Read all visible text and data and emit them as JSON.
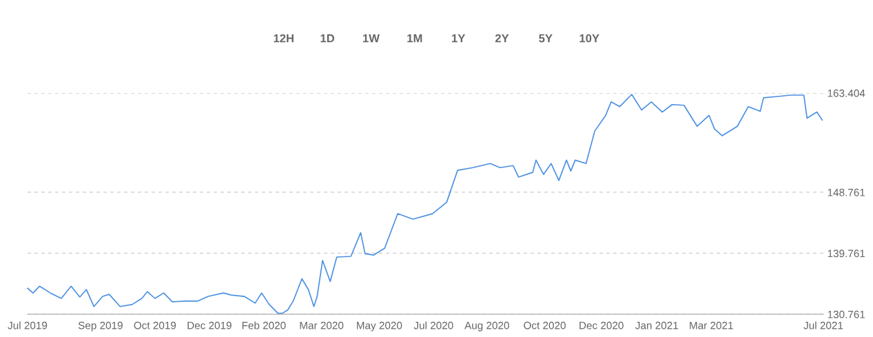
{
  "chart_data": {
    "type": "line",
    "annotations": [
      "12H",
      "1D",
      "1W",
      "1M",
      "1Y",
      "2Y",
      "5Y",
      "10Y"
    ],
    "x": [
      "2019-07-01",
      "2019-07-06",
      "2019-07-12",
      "2019-07-22",
      "2019-08-01",
      "2019-08-10",
      "2019-08-18",
      "2019-08-24",
      "2019-08-31",
      "2019-09-08",
      "2019-09-14",
      "2019-09-24",
      "2019-10-05",
      "2019-10-14",
      "2019-10-19",
      "2019-10-26",
      "2019-11-03",
      "2019-11-11",
      "2019-11-23",
      "2019-12-04",
      "2019-12-14",
      "2019-12-28",
      "2020-01-04",
      "2020-01-16",
      "2020-01-26",
      "2020-02-01",
      "2020-02-08",
      "2020-02-16",
      "2020-02-20",
      "2020-02-25",
      "2020-03-01",
      "2020-03-09",
      "2020-03-15",
      "2020-03-20",
      "2020-03-23",
      "2020-03-28",
      "2020-04-04",
      "2020-04-10",
      "2020-04-23",
      "2020-05-02",
      "2020-05-06",
      "2020-05-14",
      "2020-05-24",
      "2020-06-05",
      "2020-06-19",
      "2020-07-07",
      "2020-07-20",
      "2020-07-30",
      "2020-08-13",
      "2020-08-29",
      "2020-09-07",
      "2020-09-19",
      "2020-09-24",
      "2020-10-07",
      "2020-10-10",
      "2020-10-17",
      "2020-10-24",
      "2020-10-31",
      "2020-11-07",
      "2020-11-11",
      "2020-11-15",
      "2020-11-25",
      "2020-12-03",
      "2020-12-13",
      "2020-12-18",
      "2020-12-26",
      "2021-01-06",
      "2021-01-15",
      "2021-01-24",
      "2021-02-03",
      "2021-02-12",
      "2021-02-23",
      "2021-03-07",
      "2021-03-18",
      "2021-03-23",
      "2021-03-30",
      "2021-04-13",
      "2021-04-23",
      "2021-05-04",
      "2021-05-07",
      "2021-05-20",
      "2021-06-01",
      "2021-06-13",
      "2021-06-16",
      "2021-06-25",
      "2021-06-30"
    ],
    "series": [
      {
        "color": "#4a90e2",
        "values": [
          134.6,
          133.9,
          134.9,
          133.9,
          133.1,
          134.9,
          133.3,
          134.4,
          131.9,
          133.4,
          133.7,
          131.9,
          132.2,
          133.1,
          134.1,
          133.1,
          133.9,
          132.6,
          132.7,
          132.7,
          133.4,
          133.9,
          133.6,
          133.4,
          132.4,
          133.9,
          132.2,
          130.9,
          130.9,
          131.4,
          132.7,
          136.0,
          134.4,
          131.9,
          133.4,
          138.7,
          135.6,
          139.2,
          139.3,
          142.8,
          139.7,
          139.5,
          140.5,
          145.6,
          144.8,
          145.6,
          147.3,
          152.0,
          152.4,
          153.0,
          152.4,
          152.7,
          151.0,
          151.7,
          153.5,
          151.4,
          153.0,
          150.5,
          153.5,
          151.9,
          153.5,
          153.0,
          157.8,
          160.1,
          162.1,
          161.4,
          163.2,
          160.9,
          162.1,
          160.6,
          161.7,
          161.6,
          158.5,
          160.1,
          158.1,
          157.1,
          158.5,
          161.4,
          160.7,
          162.7,
          162.9,
          163.1,
          163.1,
          159.7,
          160.6,
          159.4
        ]
      }
    ],
    "xlim": [
      "2019-07-01",
      "2021-07-01"
    ],
    "xticks": [
      {
        "value": "2019-07-01",
        "label": "Jul 2019"
      },
      {
        "value": "2019-09-06",
        "label": "Sep 2019"
      },
      {
        "value": "2019-10-26",
        "label": "Oct 2019"
      },
      {
        "value": "2019-12-15",
        "label": "Dec 2019"
      },
      {
        "value": "2020-02-03",
        "label": "Feb 2020"
      },
      {
        "value": "2020-03-27",
        "label": "Mar 2020"
      },
      {
        "value": "2020-05-19",
        "label": "May 2020"
      },
      {
        "value": "2020-07-08",
        "label": "Jul 2020"
      },
      {
        "value": "2020-08-26",
        "label": "Aug 2020"
      },
      {
        "value": "2020-10-18",
        "label": "Oct 2020"
      },
      {
        "value": "2020-12-09",
        "label": "Dec 2020"
      },
      {
        "value": "2021-01-29",
        "label": "Jan 2021"
      },
      {
        "value": "2021-03-20",
        "label": "Mar 2021"
      },
      {
        "value": "2021-07-01",
        "label": "Jul 2021"
      }
    ],
    "ylim": [
      130.761,
      163.404
    ],
    "yticks": [
      130.761,
      139.761,
      148.761,
      163.404
    ],
    "grid": "y",
    "marker": "none",
    "line_style": "solid"
  }
}
